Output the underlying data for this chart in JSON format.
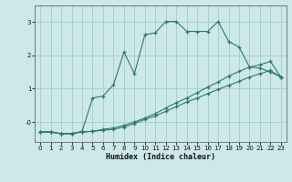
{
  "title": "",
  "xlabel": "Humidex (Indice chaleur)",
  "bg_color": "#cce8e8",
  "grid_color": "#aacfcf",
  "line_color": "#2d7a6a",
  "xlim": [
    -0.5,
    23.5
  ],
  "ylim": [
    -0.6,
    3.5
  ],
  "xticks": [
    0,
    1,
    2,
    3,
    4,
    5,
    6,
    7,
    8,
    9,
    10,
    11,
    12,
    13,
    14,
    15,
    16,
    17,
    18,
    19,
    20,
    21,
    22,
    23
  ],
  "yticks": [
    0,
    1,
    2,
    3
  ],
  "ytick_labels": [
    "-0",
    "1",
    "2",
    "3"
  ],
  "line1_x": [
    0,
    1,
    2,
    3,
    4,
    5,
    6,
    7,
    8,
    9,
    10,
    11,
    12,
    13,
    14,
    15,
    16,
    17,
    18,
    19,
    20,
    21,
    22,
    23
  ],
  "line1_y": [
    -0.3,
    -0.3,
    -0.35,
    -0.35,
    -0.28,
    0.72,
    0.78,
    1.12,
    2.1,
    1.45,
    2.62,
    2.68,
    3.02,
    3.02,
    2.72,
    2.72,
    2.72,
    3.02,
    2.42,
    2.25,
    1.65,
    1.62,
    1.5,
    1.35
  ],
  "line2_x": [
    0,
    1,
    2,
    3,
    4,
    5,
    6,
    7,
    8,
    9,
    10,
    11,
    12,
    13,
    14,
    15,
    16,
    17,
    18,
    19,
    20,
    21,
    22,
    23
  ],
  "line2_y": [
    -0.3,
    -0.3,
    -0.35,
    -0.35,
    -0.3,
    -0.28,
    -0.25,
    -0.22,
    -0.15,
    -0.05,
    0.08,
    0.18,
    0.32,
    0.46,
    0.6,
    0.72,
    0.85,
    0.98,
    1.1,
    1.22,
    1.35,
    1.45,
    1.55,
    1.35
  ],
  "line3_x": [
    0,
    1,
    2,
    3,
    4,
    5,
    6,
    7,
    8,
    9,
    10,
    11,
    12,
    13,
    14,
    15,
    16,
    17,
    18,
    19,
    20,
    21,
    22,
    23
  ],
  "line3_y": [
    -0.3,
    -0.3,
    -0.35,
    -0.35,
    -0.3,
    -0.28,
    -0.22,
    -0.18,
    -0.1,
    0.0,
    0.12,
    0.25,
    0.42,
    0.58,
    0.72,
    0.88,
    1.05,
    1.2,
    1.38,
    1.52,
    1.65,
    1.72,
    1.82,
    1.35
  ]
}
